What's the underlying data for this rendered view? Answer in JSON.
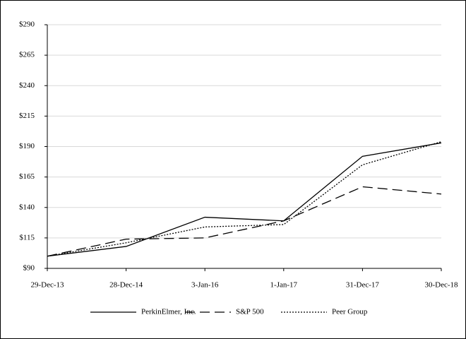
{
  "chart_data": {
    "type": "line",
    "categories": [
      "29-Dec-13",
      "28-Dec-14",
      "3-Jan-16",
      "1-Jan-17",
      "31-Dec-17",
      "30-Dec-18"
    ],
    "series": [
      {
        "name": "PerkinElmer, Inc.",
        "color": "#000000",
        "dash": "solid",
        "values": [
          100,
          108,
          132,
          129,
          182,
          193
        ]
      },
      {
        "name": "S&P 500",
        "color": "#000000",
        "dash": "dashed",
        "values": [
          100,
          114,
          115,
          129,
          157,
          151
        ]
      },
      {
        "name": "Peer Group",
        "color": "#000000",
        "dash": "dotted",
        "values": [
          100,
          111,
          124,
          126,
          175,
          194
        ]
      }
    ],
    "ylim": [
      90,
      290
    ],
    "yticks": [
      {
        "value": 90,
        "label": "$90"
      },
      {
        "value": 115,
        "label": "$115"
      },
      {
        "value": 140,
        "label": "$140"
      },
      {
        "value": 165,
        "label": "$165"
      },
      {
        "value": 190,
        "label": "$190"
      },
      {
        "value": 215,
        "label": "$215"
      },
      {
        "value": 240,
        "label": "$240"
      },
      {
        "value": 265,
        "label": "$265"
      },
      {
        "value": 290,
        "label": "$290"
      }
    ],
    "grid": true,
    "legend": "bottom"
  }
}
